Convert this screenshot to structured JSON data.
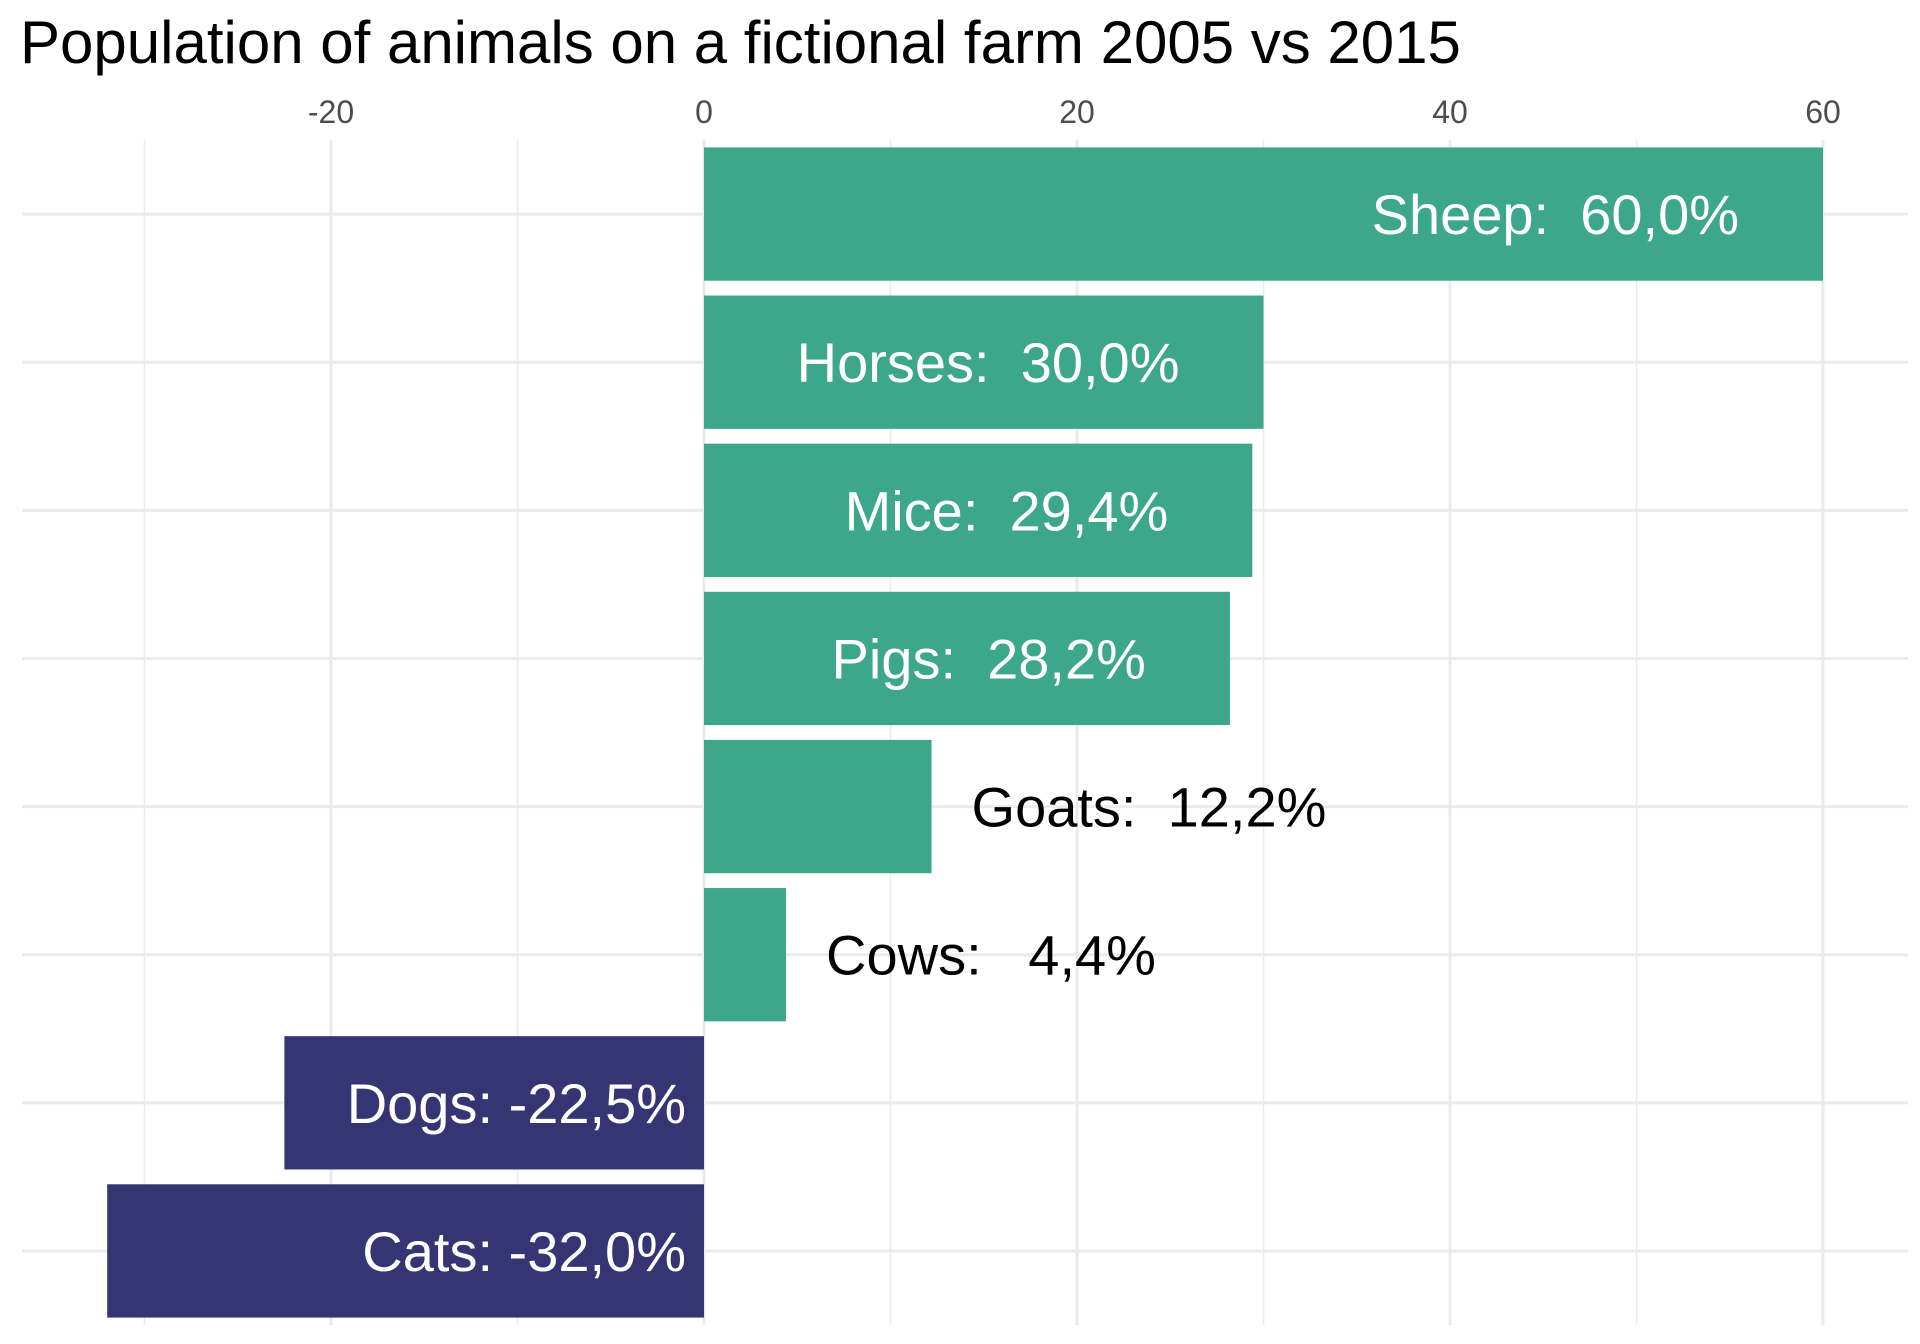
{
  "chart_data": {
    "type": "bar",
    "orientation": "horizontal",
    "title": "Population of animals on a fictional farm 2005 vs 2015",
    "xlabel": "",
    "ylabel": "",
    "xlim": [
      -32.5,
      63.5
    ],
    "x_ticks": [
      -20,
      0,
      20,
      40,
      60
    ],
    "x_tick_labels": [
      "-20",
      "0",
      "20",
      "40",
      "60"
    ],
    "x_axis_position": "top",
    "grid": true,
    "legend": "none",
    "categories": [
      "Sheep",
      "Horses",
      "Mice",
      "Pigs",
      "Goats",
      "Cows",
      "Dogs",
      "Cats"
    ],
    "values": [
      60.0,
      30.0,
      29.4,
      28.2,
      12.2,
      4.4,
      -22.5,
      -32.0
    ],
    "labels": [
      "Sheep:  60,0%",
      "Horses:  30,0%",
      "Mice:  29,4%",
      "Pigs:  28,2%",
      "Goats:  12,2%",
      "Cows:   4,4%",
      "Dogs: -22,5%",
      "Cats: -32,0%"
    ],
    "label_inside": [
      true,
      true,
      true,
      true,
      false,
      false,
      true,
      true
    ],
    "colors": {
      "positive": "#3ca78b",
      "negative": "#363574",
      "grid": "#ebebeb",
      "label_inside": "#ffffff",
      "label_outside": "#000000"
    }
  }
}
